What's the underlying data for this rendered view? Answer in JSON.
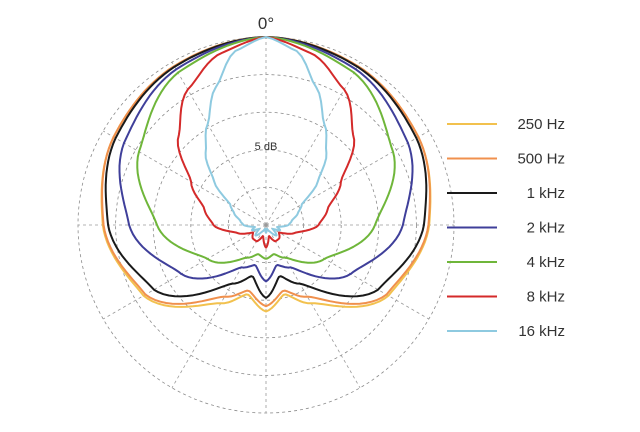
{
  "chart_data": {
    "type": "polar",
    "angle_label": "0°",
    "ring_label": "5 dB",
    "rings_db": [
      -25,
      -20,
      -15,
      -10,
      -5,
      0
    ],
    "spokes_deg": [
      0,
      30,
      60,
      90,
      120,
      150,
      180,
      210,
      240,
      270,
      300,
      330
    ],
    "legend_position": "right",
    "series": [
      {
        "name": "250 Hz",
        "color": "#f2c14e",
        "points_deg_db": [
          [
            0,
            0
          ],
          [
            30,
            -0.6
          ],
          [
            60,
            -1.6
          ],
          [
            90,
            -3.3
          ],
          [
            120,
            -6.2
          ],
          [
            150,
            -13
          ],
          [
            165,
            -15.5
          ],
          [
            180,
            -13.5
          ]
        ]
      },
      {
        "name": "500 Hz",
        "color": "#f0904d",
        "points_deg_db": [
          [
            0,
            0
          ],
          [
            30,
            -0.6
          ],
          [
            60,
            -1.6
          ],
          [
            90,
            -3.4
          ],
          [
            120,
            -6.5
          ],
          [
            150,
            -14
          ],
          [
            165,
            -16
          ],
          [
            180,
            -14.2
          ]
        ]
      },
      {
        "name": "1 kHz",
        "color": "#1a1a1a",
        "points_deg_db": [
          [
            0,
            0
          ],
          [
            30,
            -0.7
          ],
          [
            60,
            -1.9
          ],
          [
            90,
            -4.0
          ],
          [
            120,
            -7.8
          ],
          [
            150,
            -16
          ],
          [
            165,
            -18
          ],
          [
            180,
            -15.3
          ]
        ]
      },
      {
        "name": "2 kHz",
        "color": "#3f3f9a",
        "points_deg_db": [
          [
            0,
            0
          ],
          [
            30,
            -1.1
          ],
          [
            60,
            -3.2
          ],
          [
            90,
            -6.8
          ],
          [
            120,
            -12
          ],
          [
            150,
            -18.5
          ],
          [
            165,
            -19.5
          ],
          [
            180,
            -17.5
          ]
        ]
      },
      {
        "name": "4 kHz",
        "color": "#6fb63a",
        "points_deg_db": [
          [
            0,
            0
          ],
          [
            30,
            -1.6
          ],
          [
            60,
            -5.5
          ],
          [
            90,
            -10.5
          ],
          [
            120,
            -16
          ],
          [
            150,
            -20
          ],
          [
            165,
            -21
          ],
          [
            180,
            -20.5
          ]
        ]
      },
      {
        "name": "8 kHz",
        "color": "#d42a2a",
        "points_deg_db": [
          [
            0,
            0
          ],
          [
            15,
            -1.4
          ],
          [
            30,
            -4.2
          ],
          [
            45,
            -8.5
          ],
          [
            60,
            -13.5
          ],
          [
            75,
            -16.5
          ],
          [
            90,
            -18
          ],
          [
            105,
            -21
          ],
          [
            120,
            -23
          ],
          [
            135,
            -22.5
          ],
          [
            150,
            -22.5
          ],
          [
            165,
            -23.5
          ],
          [
            180,
            -22
          ]
        ]
      },
      {
        "name": "16 kHz",
        "color": "#8ecae0",
        "points_deg_db": [
          [
            0,
            0
          ],
          [
            10,
            -1.5
          ],
          [
            20,
            -5.5
          ],
          [
            30,
            -9.5
          ],
          [
            40,
            -12.5
          ],
          [
            50,
            -16
          ],
          [
            60,
            -19.5
          ],
          [
            70,
            -20.5
          ],
          [
            80,
            -21.5
          ],
          [
            90,
            -22
          ],
          [
            100,
            -23.5
          ],
          [
            110,
            -23
          ],
          [
            120,
            -24
          ],
          [
            135,
            -23
          ],
          [
            150,
            -24
          ],
          [
            165,
            -24.5
          ],
          [
            180,
            -24
          ]
        ]
      }
    ]
  }
}
